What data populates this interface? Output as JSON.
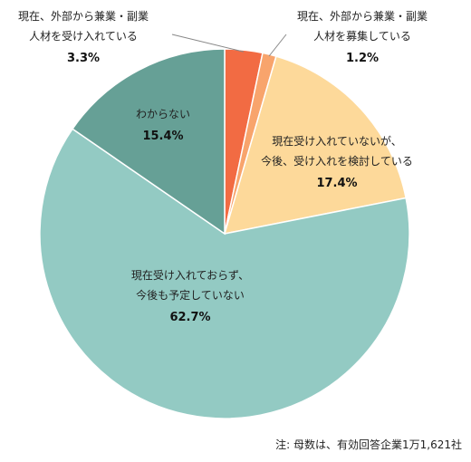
{
  "chart_data": {
    "type": "pie",
    "slices": [
      {
        "label_lines": [
          "現在、外部から兼業・副業",
          "人材を受け入れている"
        ],
        "value": 3.3,
        "value_label": "3.3%",
        "color": "#F26B43"
      },
      {
        "label_lines": [
          "現在、外部から兼業・副業",
          "人材を募集している"
        ],
        "value": 1.2,
        "value_label": "1.2%",
        "color": "#F8A46C"
      },
      {
        "label_lines": [
          "現在受け入れていないが、",
          "今後、受け入れを検討している"
        ],
        "value": 17.4,
        "value_label": "17.4%",
        "color": "#FDD99A"
      },
      {
        "label_lines": [
          "現在受け入れておらず、",
          "今後も予定していない"
        ],
        "value": 62.7,
        "value_label": "62.7%",
        "color": "#93CAC3"
      },
      {
        "label_lines": [
          "わからない"
        ],
        "value": 15.4,
        "value_label": "15.4%",
        "color": "#66A096"
      }
    ],
    "note": "注: 母数は、有効回答企業1万1,621社"
  }
}
